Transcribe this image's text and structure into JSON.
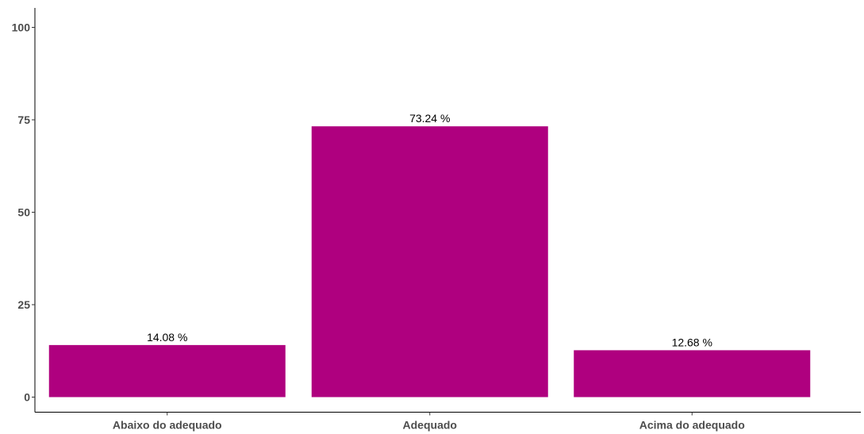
{
  "chart_data": {
    "type": "bar",
    "categories": [
      "Abaixo do adequado",
      "Adequado",
      "Acima do adequado"
    ],
    "values": [
      14.08,
      73.24,
      12.68
    ],
    "data_labels": [
      "14.08 %",
      "73.24 %",
      "12.68 %"
    ],
    "y_ticks": [
      0,
      25,
      50,
      75,
      100
    ],
    "ylim": [
      0,
      100
    ],
    "title": "",
    "xlabel": "",
    "ylabel": "",
    "bar_color": "#AF007F",
    "grid": false,
    "legend": "none"
  }
}
